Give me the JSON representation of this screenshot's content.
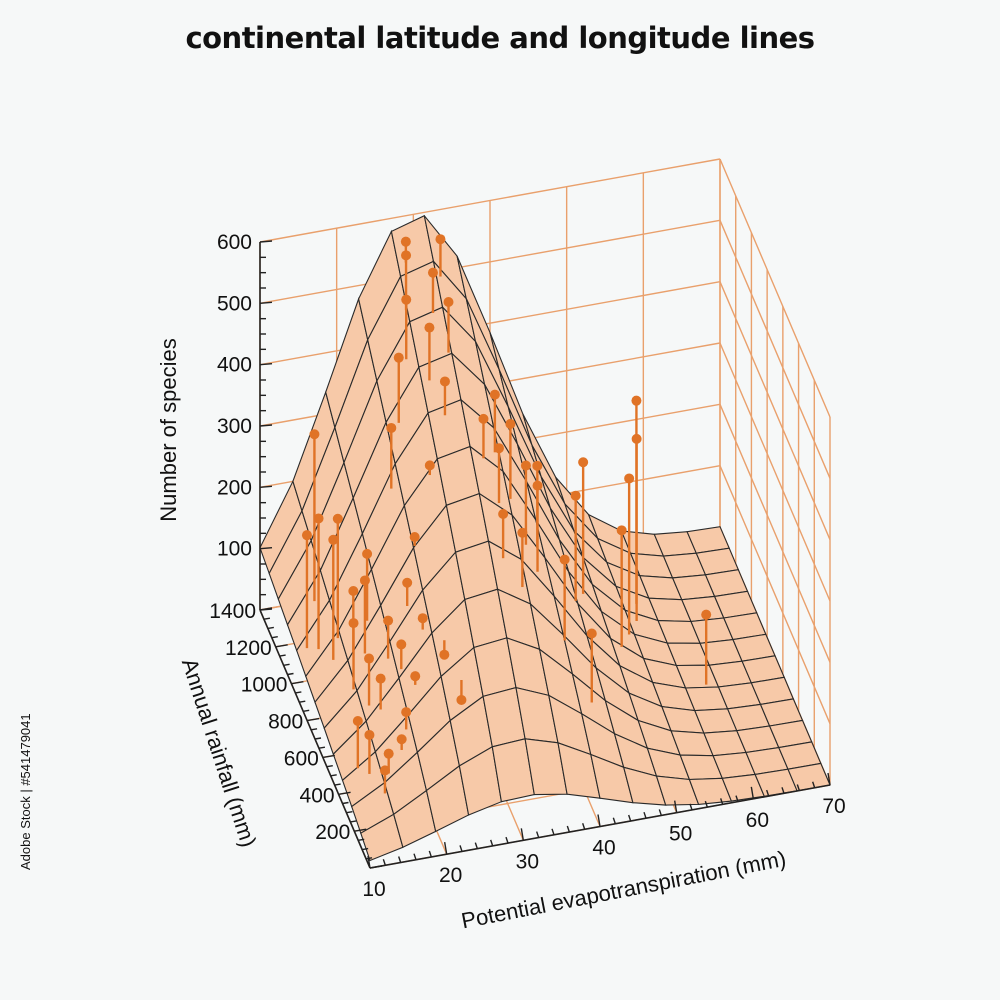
{
  "page": {
    "watermark": "Adobe Stock | #541479041"
  },
  "chart_data": {
    "type": "surface3d",
    "title": "continental latitude and longitude lines",
    "x_axis": {
      "label": "Potential evapotranspiration (mm)",
      "ticks": [
        10,
        20,
        30,
        40,
        50,
        60,
        70
      ],
      "range": [
        10,
        70
      ]
    },
    "y_axis": {
      "label": "Annual rainfall (mm)",
      "ticks": [
        200,
        400,
        600,
        800,
        1000,
        1200,
        1400
      ],
      "range": [
        0,
        1400
      ]
    },
    "z_axis": {
      "label": "Number of species",
      "ticks": [
        100,
        200,
        300,
        400,
        500,
        600
      ],
      "range": [
        0,
        600
      ]
    },
    "grid": true,
    "surface": {
      "description_peak_x": 30,
      "peak_value": 600,
      "x_samples": 14,
      "y_samples": 12
    },
    "points": [
      {
        "x": 11,
        "y": 900,
        "z": 270
      },
      {
        "x": 12,
        "y": 850,
        "z": 310
      },
      {
        "x": 13,
        "y": 760,
        "z": 300
      },
      {
        "x": 14,
        "y": 800,
        "z": 320
      },
      {
        "x": 13,
        "y": 1000,
        "z": 400
      },
      {
        "x": 15,
        "y": 700,
        "z": 230
      },
      {
        "x": 14,
        "y": 600,
        "z": 210
      },
      {
        "x": 16,
        "y": 650,
        "z": 260
      },
      {
        "x": 17,
        "y": 720,
        "z": 280
      },
      {
        "x": 15,
        "y": 500,
        "z": 180
      },
      {
        "x": 16,
        "y": 450,
        "z": 160
      },
      {
        "x": 18,
        "y": 550,
        "z": 220
      },
      {
        "x": 19,
        "y": 480,
        "z": 200
      },
      {
        "x": 12,
        "y": 350,
        "z": 130
      },
      {
        "x": 13,
        "y": 300,
        "z": 120
      },
      {
        "x": 15,
        "y": 250,
        "z": 100
      },
      {
        "x": 17,
        "y": 280,
        "z": 110
      },
      {
        "x": 14,
        "y": 200,
        "z": 90
      },
      {
        "x": 18,
        "y": 320,
        "z": 140
      },
      {
        "x": 20,
        "y": 400,
        "z": 170
      },
      {
        "x": 21,
        "y": 600,
        "z": 260
      },
      {
        "x": 22,
        "y": 500,
        "z": 230
      },
      {
        "x": 23,
        "y": 700,
        "z": 300
      },
      {
        "x": 24,
        "y": 420,
        "z": 190
      },
      {
        "x": 25,
        "y": 300,
        "z": 150
      },
      {
        "x": 26,
        "y": 800,
        "z": 380
      },
      {
        "x": 22,
        "y": 900,
        "z": 420
      },
      {
        "x": 24,
        "y": 1000,
        "z": 500
      },
      {
        "x": 26,
        "y": 1100,
        "z": 560
      },
      {
        "x": 28,
        "y": 1000,
        "z": 540
      },
      {
        "x": 29,
        "y": 900,
        "z": 480
      },
      {
        "x": 27,
        "y": 1200,
        "z": 600
      },
      {
        "x": 30,
        "y": 1150,
        "z": 580
      },
      {
        "x": 31,
        "y": 1050,
        "z": 560
      },
      {
        "x": 28,
        "y": 1300,
        "z": 590
      },
      {
        "x": 32,
        "y": 1250,
        "z": 600
      },
      {
        "x": 33,
        "y": 800,
        "z": 440
      },
      {
        "x": 34,
        "y": 700,
        "z": 420
      },
      {
        "x": 35,
        "y": 850,
        "z": 460
      },
      {
        "x": 36,
        "y": 750,
        "z": 440
      },
      {
        "x": 37,
        "y": 650,
        "z": 400
      },
      {
        "x": 38,
        "y": 600,
        "z": 380
      },
      {
        "x": 33,
        "y": 550,
        "z": 360
      },
      {
        "x": 35,
        "y": 500,
        "z": 340
      },
      {
        "x": 39,
        "y": 700,
        "z": 380
      },
      {
        "x": 40,
        "y": 450,
        "z": 300
      },
      {
        "x": 42,
        "y": 300,
        "z": 220
      },
      {
        "x": 44,
        "y": 700,
        "z": 320
      },
      {
        "x": 46,
        "y": 800,
        "z": 340
      },
      {
        "x": 50,
        "y": 700,
        "z": 250
      },
      {
        "x": 52,
        "y": 800,
        "z": 300
      },
      {
        "x": 54,
        "y": 900,
        "z": 330
      },
      {
        "x": 55,
        "y": 1000,
        "z": 360
      },
      {
        "x": 60,
        "y": 600,
        "z": 120
      }
    ]
  }
}
